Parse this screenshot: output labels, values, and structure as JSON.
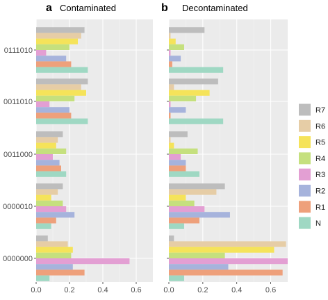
{
  "chart_data": {
    "type": "bar",
    "orientation": "horizontal",
    "categories": [
      "0111010",
      "0011010",
      "0011000",
      "0000010",
      "0000000"
    ],
    "xlim": [
      0,
      0.7
    ],
    "xticks": [
      "0.0",
      "0.2",
      "0.4",
      "0.6"
    ],
    "xtick_values": [
      0,
      0.2,
      0.4,
      0.6
    ],
    "grid": true,
    "legend_position": "right",
    "series_names": [
      "R7",
      "R6",
      "R5",
      "R4",
      "R3",
      "R2",
      "R1",
      "N"
    ],
    "colors": {
      "R7": "#bdbdbd",
      "R6": "#e6cda6",
      "R5": "#f5e35a",
      "R4": "#c5e07e",
      "R3": "#e39fd3",
      "R2": "#a6b3dc",
      "R1": "#eea07b",
      "N": "#9fd8c3"
    },
    "panels": [
      {
        "letter": "a",
        "title": "Contaminated",
        "series": [
          {
            "name": "R7",
            "values": [
              0.29,
              0.31,
              0.16,
              0.16,
              0.07
            ]
          },
          {
            "name": "R6",
            "values": [
              0.27,
              0.27,
              0.13,
              0.13,
              0.19
            ]
          },
          {
            "name": "R5",
            "values": [
              0.25,
              0.3,
              0.12,
              0.09,
              0.22
            ]
          },
          {
            "name": "R4",
            "values": [
              0.2,
              0.23,
              0.18,
              0.16,
              0.21
            ]
          },
          {
            "name": "R3",
            "values": [
              0.06,
              0.08,
              0.1,
              0.18,
              0.56
            ]
          },
          {
            "name": "R2",
            "values": [
              0.18,
              0.2,
              0.14,
              0.23,
              0.22
            ]
          },
          {
            "name": "R1",
            "values": [
              0.21,
              0.21,
              0.15,
              0.12,
              0.29
            ]
          },
          {
            "name": "N",
            "values": [
              0.31,
              0.31,
              0.18,
              0.09,
              0.08
            ]
          }
        ]
      },
      {
        "letter": "b",
        "title": "Decontaminated",
        "series": [
          {
            "name": "R7",
            "values": [
              0.21,
              0.29,
              0.11,
              0.33,
              0.03
            ]
          },
          {
            "name": "R6",
            "values": [
              0.01,
              0.03,
              0.01,
              0.28,
              0.69
            ]
          },
          {
            "name": "R5",
            "values": [
              0.04,
              0.24,
              0.03,
              0.1,
              0.62
            ]
          },
          {
            "name": "R4",
            "values": [
              0.09,
              0.16,
              0.17,
              0.15,
              0.33
            ]
          },
          {
            "name": "R3",
            "values": [
              0.01,
              0.01,
              0.07,
              0.21,
              0.7
            ]
          },
          {
            "name": "R2",
            "values": [
              0.07,
              0.1,
              0.1,
              0.36,
              0.35
            ]
          },
          {
            "name": "R1",
            "values": [
              0.02,
              0.01,
              0.1,
              0.18,
              0.67
            ]
          },
          {
            "name": "N",
            "values": [
              0.32,
              0.32,
              0.18,
              0.09,
              0.09
            ]
          }
        ]
      }
    ]
  }
}
